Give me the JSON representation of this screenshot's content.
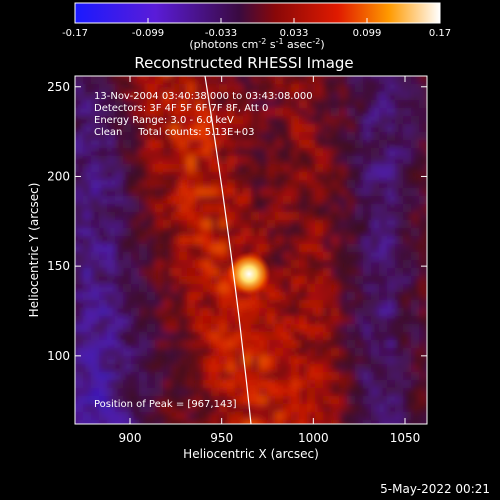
{
  "chart_data": {
    "type": "heatmap",
    "title": "Reconstructed RHESSI Image",
    "colorbar": {
      "min": -0.17,
      "max": 0.17,
      "tick_labels": [
        "-0.17",
        "-0.099",
        "-0.033",
        "0.033",
        "0.099",
        "0.17"
      ],
      "units_label": "(photons cm-2 s-1 asec-2)"
    },
    "info_lines": [
      "13-Nov-2004 03:40:38.000 to 03:43:08.000",
      "Detectors: 3F 4F 5F 6F 7F 8F, Att 0",
      "Energy Range: 3.0 - 6.0 keV",
      "Clean     Total counts: 5.13E+03"
    ],
    "peak_label": "Position of Peak = [967,143]",
    "peak": [
      967,
      143
    ],
    "xlabel": "Heliocentric X (arcsec)",
    "ylabel": "Heliocentric Y (arcsec)",
    "xlim": [
      870,
      1062
    ],
    "ylim": [
      62,
      256
    ],
    "x_ticks": [
      900,
      950,
      1000,
      1050
    ],
    "y_ticks": [
      100,
      150,
      200,
      250
    ],
    "x_tick_labels": [
      "900",
      "950",
      "1000",
      "1050"
    ],
    "y_tick_labels": [
      "100",
      "150",
      "200",
      "250"
    ]
  },
  "footer": {
    "date": "5-May-2022 00:21"
  }
}
